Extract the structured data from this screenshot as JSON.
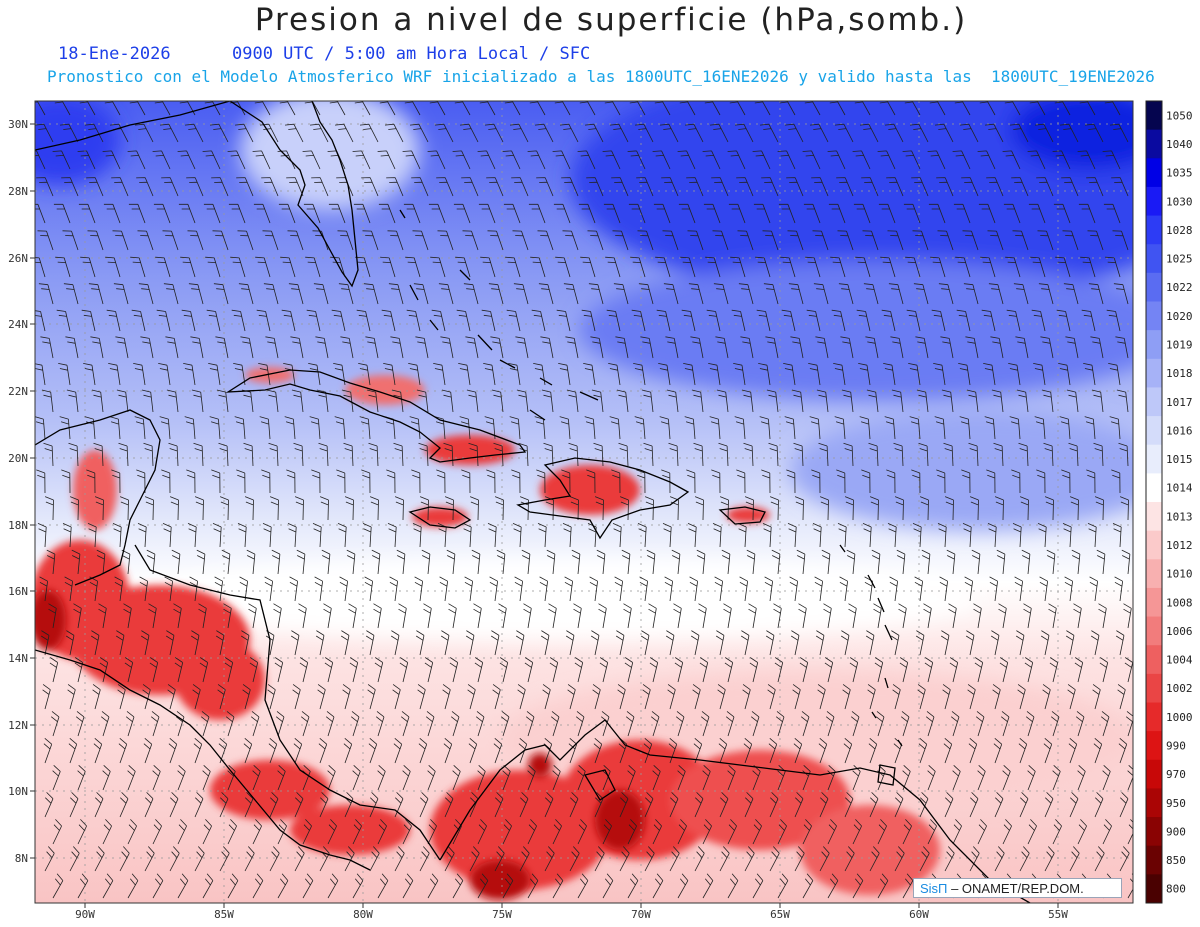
{
  "title": "Presion a nivel de superficie (hPa,somb.)",
  "subtitle_line1": "18-Ene-2026      0900 UTC / 5:00 am Hora Local / SFC",
  "subtitle_line2": "Pronostico con el Modelo Atmosferico WRF inicializado a las 1800UTC_16ENE2026 y valido hasta las  1800UTC_19ENE2026",
  "credit": {
    "brand": "SisΠ",
    "text": "ONAMET/REP.DOM."
  },
  "lat_labels": [
    "30N",
    "28N",
    "26N",
    "24N",
    "22N",
    "20N",
    "18N",
    "16N",
    "14N",
    "12N",
    "10N",
    "8N"
  ],
  "lon_labels": [
    "90W",
    "85W",
    "80W",
    "75W",
    "70W",
    "65W",
    "60W",
    "55W"
  ],
  "colorbar": {
    "labels": [
      "1050",
      "1040",
      "1035",
      "1030",
      "1028",
      "1025",
      "1022",
      "1020",
      "1019",
      "1018",
      "1017",
      "1016",
      "1015",
      "1014",
      "1013",
      "1012",
      "1010",
      "1008",
      "1006",
      "1004",
      "1002",
      "1000",
      "990",
      "970",
      "950",
      "900",
      "850",
      "800"
    ],
    "colors": [
      "#05054f",
      "#0a0aa0",
      "#0000e6",
      "#1a1af5",
      "#2d3cf5",
      "#4054f2",
      "#5a6cf2",
      "#7484f4",
      "#8e9ef5",
      "#a6b2f7",
      "#bec8f9",
      "#d4dcfa",
      "#e8edfc",
      "#ffffff",
      "#fde4e4",
      "#fbcaca",
      "#f8b0b0",
      "#f59696",
      "#f27c7c",
      "#ee6060",
      "#ea4545",
      "#e62a2a",
      "#dd1414",
      "#c80808",
      "#aa0505",
      "#8a0303",
      "#6a0202",
      "#4a0101"
    ]
  },
  "legend_colors": {
    "high": "#2d3cf5",
    "low": "#e62a2a",
    "neutral": "#ffffff"
  }
}
